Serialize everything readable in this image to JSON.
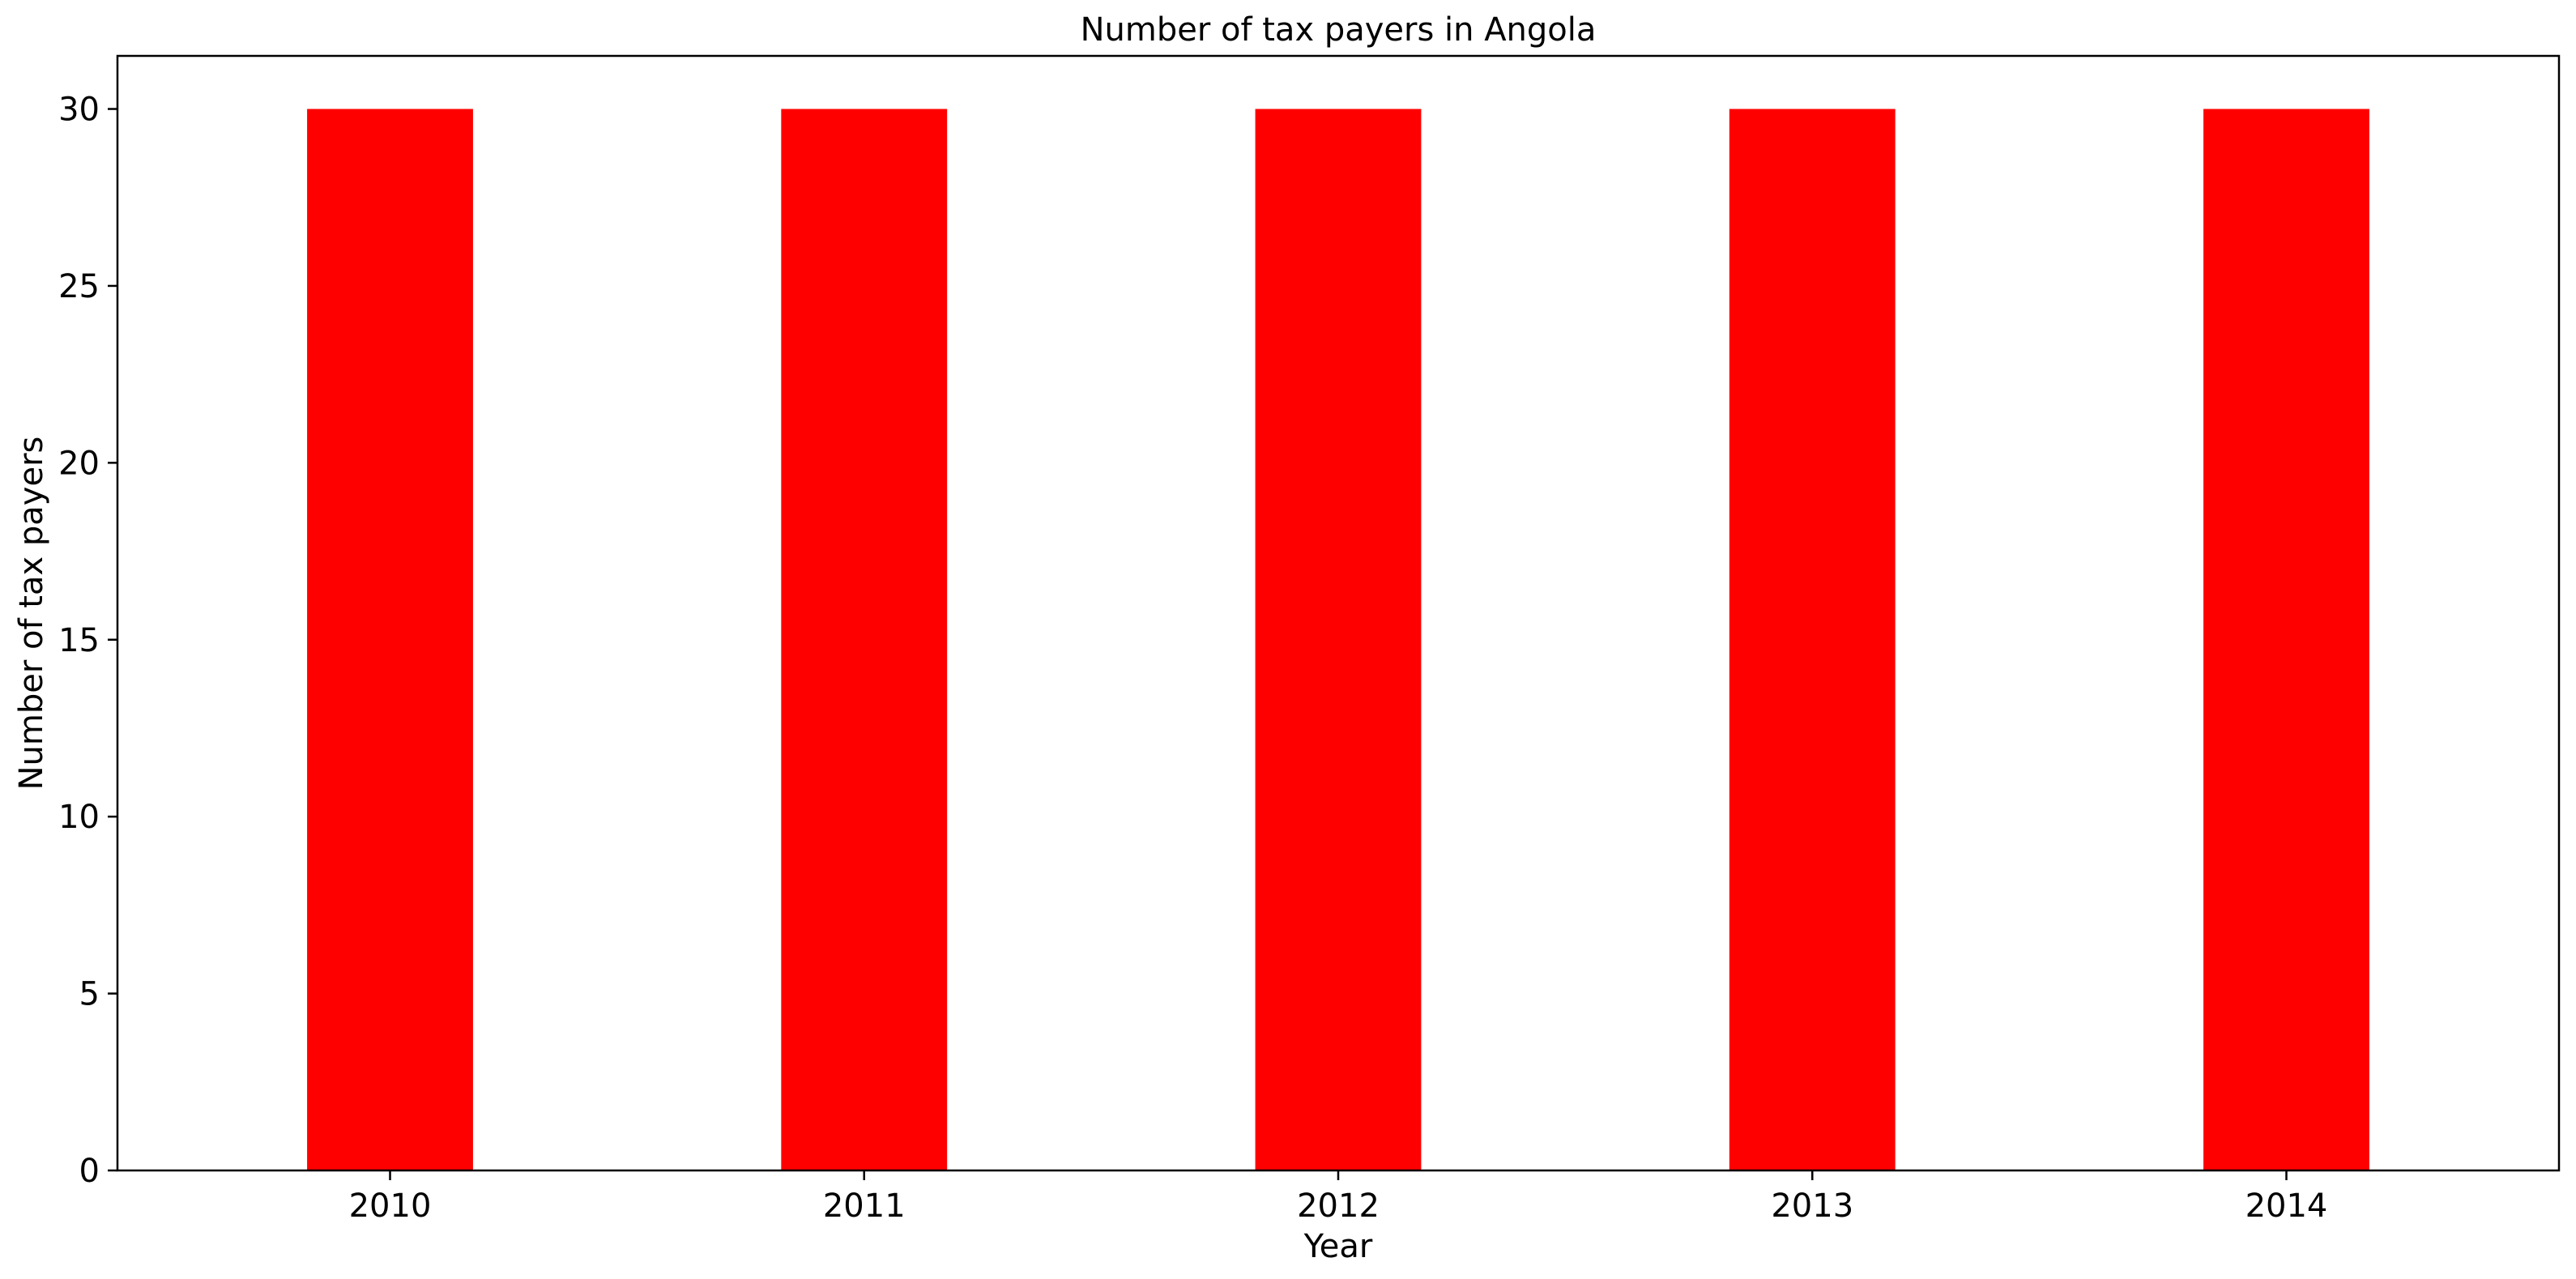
{
  "chart_data": {
    "type": "bar",
    "title": "Number of tax payers in Angola",
    "xlabel": "Year",
    "ylabel": "Number of tax payers",
    "categories": [
      "2010",
      "2011",
      "2012",
      "2013",
      "2014"
    ],
    "values": [
      30,
      30,
      30,
      30,
      30
    ],
    "ylim": [
      0,
      31.5
    ],
    "yticks": [
      0,
      5,
      10,
      15,
      20,
      25,
      30
    ],
    "bar_color": "#ff0000",
    "grid": false,
    "legend": "none"
  }
}
